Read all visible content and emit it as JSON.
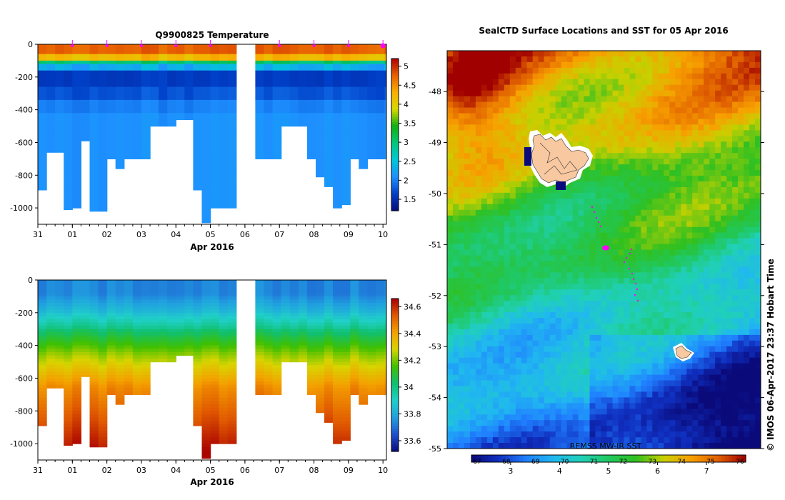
{
  "colors": {
    "temp_ramp": [
      "#0a0a7a",
      "#0040c8",
      "#1e90ff",
      "#00c8d8",
      "#00c87a",
      "#10b010",
      "#d8d800",
      "#f8b000",
      "#e86000",
      "#b00000"
    ],
    "sal_ramp": [
      "#0a0a7a",
      "#1f50d0",
      "#20a0e0",
      "#20d0c8",
      "#10c070",
      "#40c000",
      "#d8d400",
      "#f4a000",
      "#e05800",
      "#a80000"
    ],
    "sst_ramp": [
      "#0a0a7a",
      "#1030c0",
      "#2080ff",
      "#20b8f0",
      "#20d0b8",
      "#20c860",
      "#30c020",
      "#c8d000",
      "#f8a000",
      "#e06000",
      "#a00000"
    ],
    "track": "#ff00ff",
    "land": "#f8c8a0",
    "nodata": "#ffffff"
  },
  "chart_data": [
    {
      "type": "heatmap",
      "title": "Q9900825  Temperature",
      "xlabel": "Apr 2016",
      "ylabel": "",
      "x_ticks": [
        "31",
        "01",
        "02",
        "03",
        "04",
        "05",
        "06",
        "07",
        "08",
        "09",
        "10"
      ],
      "x_range": [
        0,
        10.1
      ],
      "y_ticks": [
        0,
        -200,
        -400,
        -600,
        -800,
        -1000
      ],
      "ylim": [
        -1100,
        0
      ],
      "colorbar_ticks": [
        1.5,
        2,
        2.5,
        3,
        3.5,
        4,
        4.5,
        5
      ],
      "colorbar_range": [
        1.2,
        5.2
      ],
      "profile_times": [
        0.0,
        0.25,
        0.5,
        0.75,
        1.0,
        1.25,
        1.5,
        1.75,
        2.0,
        2.25,
        2.5,
        2.75,
        3.0,
        3.25,
        3.5,
        3.75,
        4.0,
        4.25,
        4.5,
        4.75,
        5.0,
        5.25,
        5.5,
        6.3,
        6.55,
        6.8,
        7.05,
        7.3,
        7.55,
        7.8,
        8.05,
        8.3,
        8.55,
        8.8,
        9.05,
        9.3,
        9.55,
        9.8,
        10.05
      ],
      "profile_bottom_depths": [
        -890,
        -660,
        -660,
        -1010,
        -1000,
        -590,
        -1020,
        -1020,
        -700,
        -760,
        -700,
        -700,
        -700,
        -500,
        -500,
        -500,
        -460,
        -460,
        -890,
        -1090,
        -1000,
        -1000,
        -1000,
        -700,
        -700,
        -700,
        -500,
        -500,
        -500,
        -700,
        -810,
        -870,
        -1000,
        -980,
        -700,
        -760,
        -700,
        -700,
        -700
      ],
      "surface_markers": [
        1.0,
        2.0,
        3.0,
        4.0,
        5.0,
        7.0,
        8.0,
        9.0,
        10.0
      ]
    },
    {
      "type": "heatmap",
      "title": "",
      "xlabel": "Apr 2016",
      "ylabel": "",
      "x_ticks": [
        "31",
        "01",
        "02",
        "03",
        "04",
        "05",
        "06",
        "07",
        "08",
        "09",
        "10"
      ],
      "x_range": [
        0,
        10.1
      ],
      "y_ticks": [
        0,
        -200,
        -400,
        -600,
        -800,
        -1000
      ],
      "ylim": [
        -1100,
        0
      ],
      "colorbar_ticks": [
        33.6,
        33.8,
        34,
        34.2,
        34.4,
        34.6
      ],
      "colorbar_range": [
        33.52,
        34.66
      ]
    },
    {
      "type": "heatmap",
      "title": "SealCTD Surface Locations and SST for 05 Apr 2016",
      "xlabel": "",
      "ylabel": "",
      "y_ticks": [
        -48,
        -49,
        -50,
        -51,
        -52,
        -53,
        -54,
        -55
      ],
      "ylim": [
        -55,
        -47.2
      ],
      "colorbar_ticks": [
        3,
        4,
        5,
        6,
        7
      ],
      "colorbar_top_ticks": [
        "67",
        "68",
        "69",
        "70",
        "71",
        "72",
        "73",
        "74",
        "75",
        "76"
      ],
      "colorbar_range": [
        2.2,
        7.8
      ],
      "source_label": "REMSS MW-IR SST",
      "track_points": [
        [
          160,
          219
        ],
        [
          163,
          226
        ],
        [
          166,
          234
        ],
        [
          169,
          240
        ],
        [
          172,
          246
        ],
        [
          215,
          278
        ],
        [
          213,
          284
        ],
        [
          208,
          290
        ],
        [
          205,
          296
        ],
        [
          212,
          305
        ],
        [
          216,
          312
        ],
        [
          218,
          320
        ],
        [
          221,
          326
        ],
        [
          223,
          334
        ],
        [
          220,
          342
        ],
        [
          224,
          350
        ]
      ]
    }
  ],
  "credit": "© IMOS 06-Apr-2017 23:37 Hobart Time"
}
